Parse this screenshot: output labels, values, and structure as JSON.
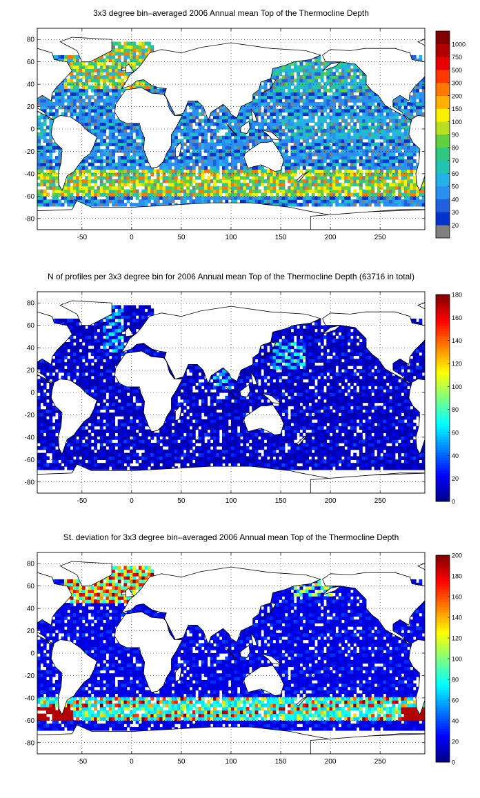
{
  "maps": [
    {
      "title": "3x3 degree bin–averaged 2006 Annual mean Top of the Thermocline Depth",
      "colorbar": {
        "type": "discrete",
        "labels": [
          "20",
          "30",
          "40",
          "50",
          "60",
          "70",
          "80",
          "90",
          "100",
          "150",
          "200",
          "300",
          "500",
          "750",
          "1000"
        ],
        "colors": [
          "#808080",
          "#0033cc",
          "#1f5fe0",
          "#2b8ff0",
          "#24b0e8",
          "#20c4b0",
          "#30c880",
          "#60d040",
          "#b8e020",
          "#f8f000",
          "#ffb000",
          "#ff7800",
          "#ff3800",
          "#e80000",
          "#b00000",
          "#800000"
        ]
      }
    },
    {
      "title": "N of profiles per 3x3 degree bin for 2006 Annual mean Top of the Thermocline Depth  (63716 in total)",
      "colorbar": {
        "type": "continuous",
        "min": 0,
        "max": 180,
        "ticks": [
          "0",
          "20",
          "40",
          "60",
          "80",
          "100",
          "120",
          "140",
          "160",
          "180"
        ]
      }
    },
    {
      "title": "St. deviation for 3x3 degree bin–averaged 2006 Annual mean Top of the Thermocline Depth",
      "colorbar": {
        "type": "continuous",
        "min": 0,
        "max": 200,
        "ticks": [
          "0",
          "20",
          "40",
          "60",
          "80",
          "100",
          "120",
          "140",
          "160",
          "180",
          "200"
        ]
      }
    }
  ],
  "axes": {
    "x_ticks": [
      "-50",
      "0",
      "50",
      "100",
      "150",
      "200",
      "250"
    ],
    "y_ticks": [
      "80",
      "60",
      "40",
      "20",
      "0",
      "-20",
      "-40",
      "-60",
      "-80"
    ],
    "x_range": [
      -95,
      295
    ],
    "y_range": [
      -90,
      90
    ]
  }
}
